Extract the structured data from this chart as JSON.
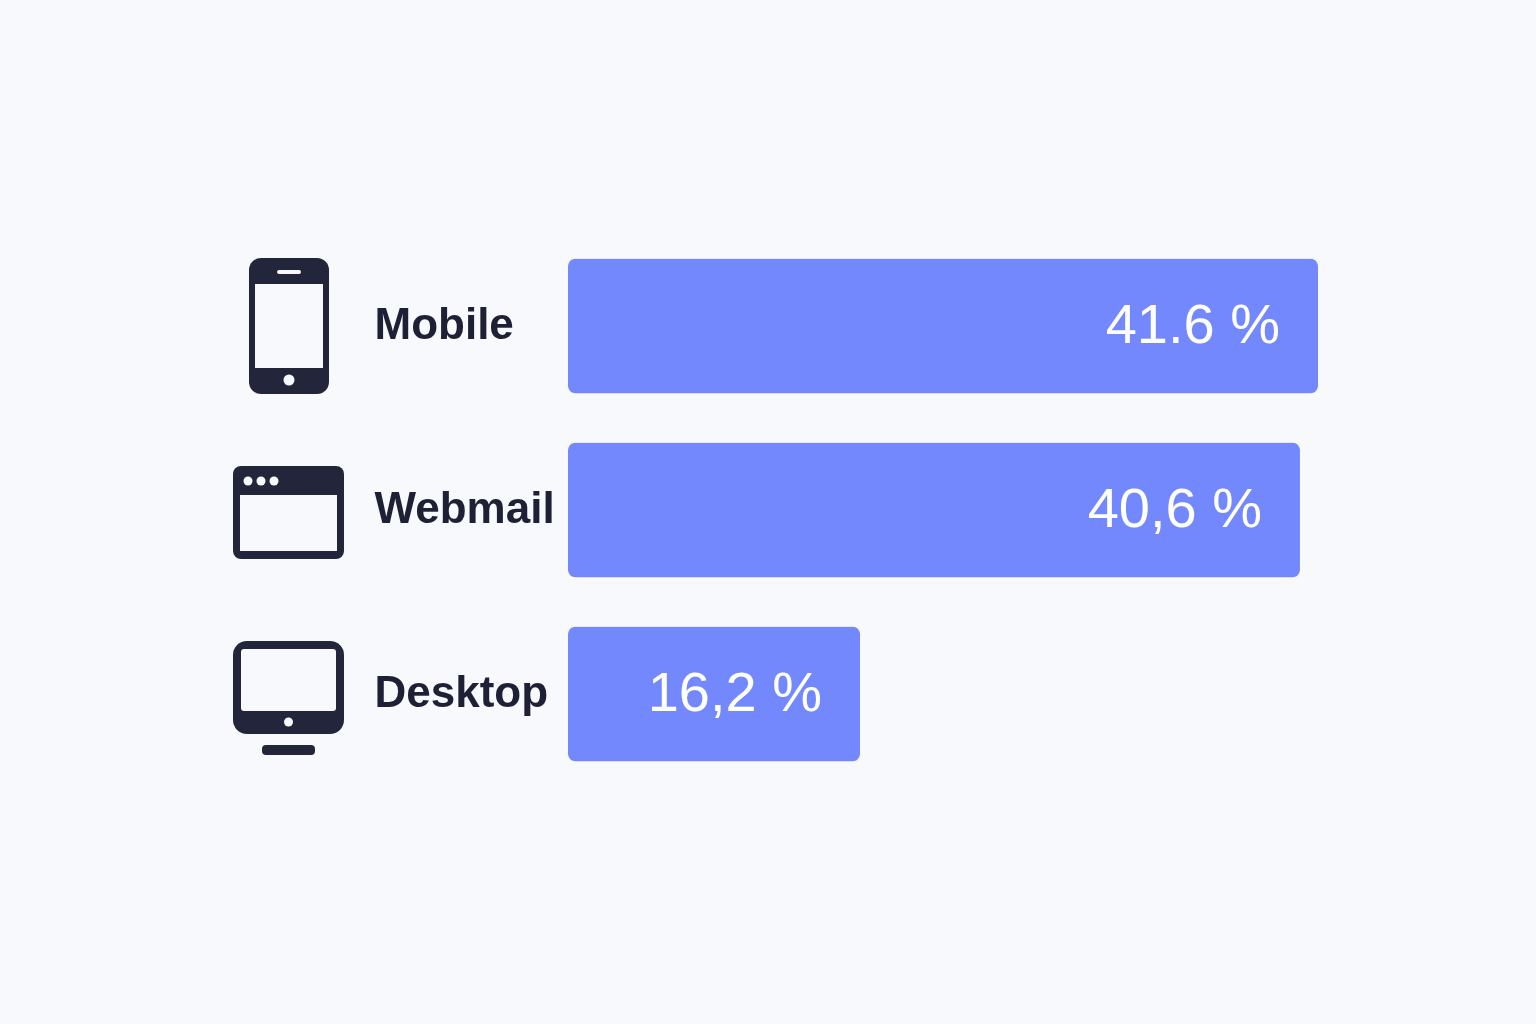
{
  "chart_data": {
    "type": "bar",
    "orientation": "horizontal",
    "categories": [
      "Mobile",
      "Webmail",
      "Desktop"
    ],
    "values": [
      41.6,
      40.6,
      16.2
    ],
    "value_labels": [
      "41.6 %",
      "40,6 %",
      "16,2 %"
    ],
    "color": "#7388fd"
  }
}
